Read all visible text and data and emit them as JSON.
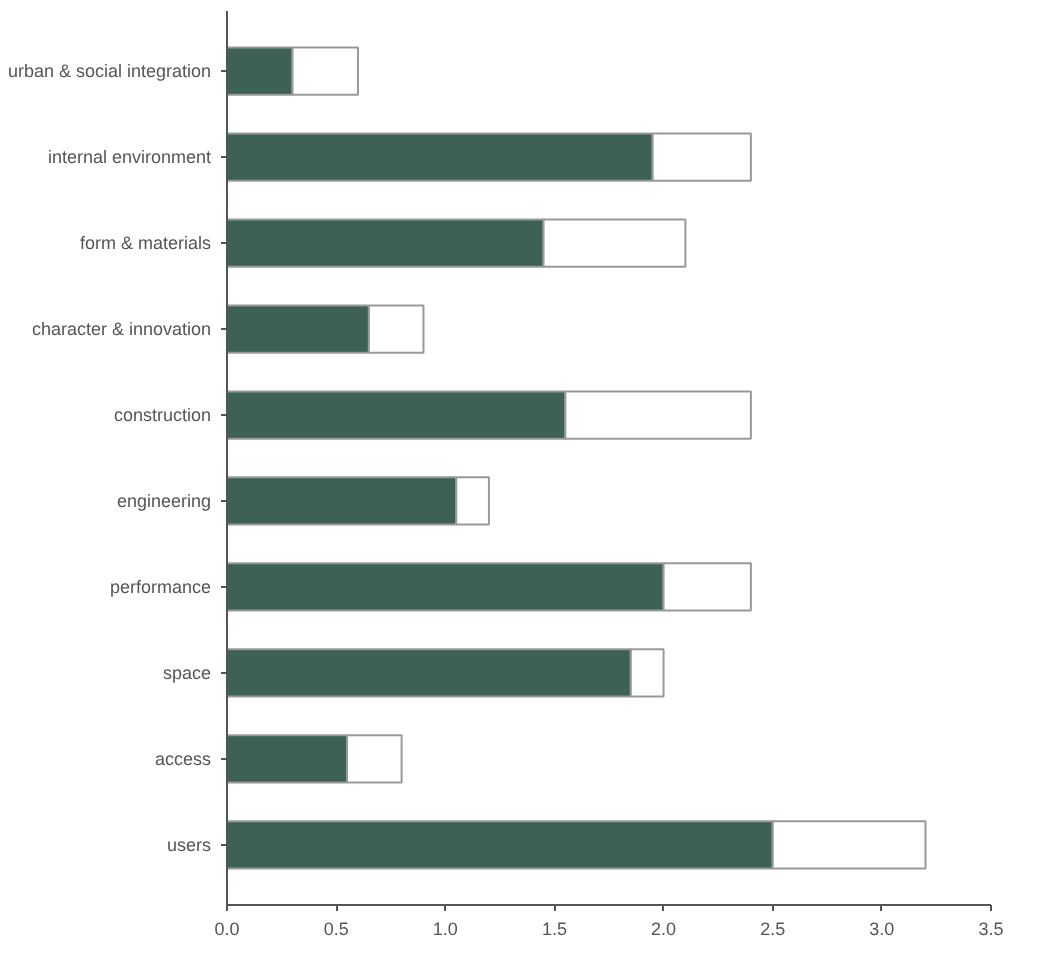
{
  "chart_data": {
    "type": "bar",
    "orientation": "horizontal",
    "stacked": true,
    "categories": [
      "urban & social integration",
      "internal environment",
      "form & materials",
      "character & innovation",
      "construction",
      "engineering",
      "performance",
      "space",
      "access",
      "users"
    ],
    "series": [
      {
        "color": "#3d6155",
        "values": [
          0.3,
          1.95,
          1.45,
          0.65,
          1.55,
          1.05,
          2.0,
          1.85,
          0.55,
          2.5
        ]
      },
      {
        "color": "#ffffff",
        "values": [
          0.3,
          0.45,
          0.65,
          0.25,
          0.85,
          0.15,
          0.4,
          0.15,
          0.25,
          0.7
        ]
      }
    ],
    "xlim": [
      0,
      3.5
    ],
    "xticks": [
      {
        "value": 0,
        "label": "0.0"
      },
      {
        "value": 0.5,
        "label": "0.5"
      },
      {
        "value": 1,
        "label": "1.0"
      },
      {
        "value": 1.5,
        "label": "1.5"
      },
      {
        "value": 2,
        "label": "2.0"
      },
      {
        "value": 2.5,
        "label": "2.5"
      },
      {
        "value": 3,
        "label": "3.0"
      },
      {
        "value": 3.5,
        "label": "3.5"
      }
    ],
    "grid": false
  }
}
